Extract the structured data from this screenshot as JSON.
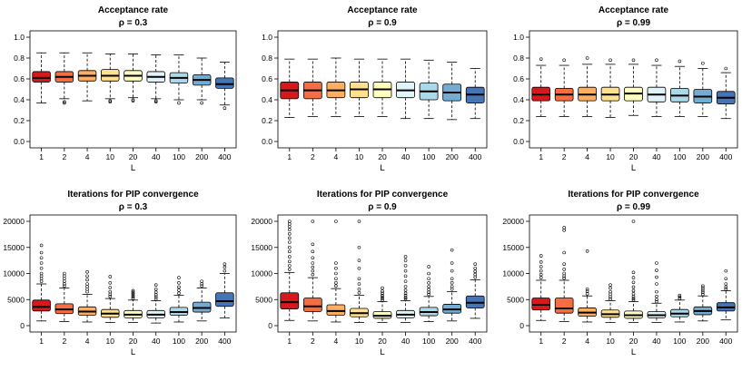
{
  "chart_data": [
    {
      "type": "boxplot",
      "title": "Acceptance rate",
      "subtitle": "ρ = 0.3",
      "xlabel": "L",
      "categories": [
        "1",
        "2",
        "4",
        "10",
        "20",
        "40",
        "100",
        "200",
        "400"
      ],
      "ylim": [
        0,
        1
      ],
      "yticks": [
        "0.0",
        "0.2",
        "0.4",
        "0.6",
        "0.8",
        "1.0"
      ],
      "colors": [
        "#d7191c",
        "#f46d43",
        "#fdae61",
        "#fee090",
        "#ffffbf",
        "#e0f3f8",
        "#abd9e9",
        "#74add1",
        "#4575b4"
      ],
      "boxes": [
        {
          "whisker_low": 0.37,
          "q1": 0.57,
          "median": 0.61,
          "q3": 0.67,
          "whisker_high": 0.85,
          "outliers": []
        },
        {
          "whisker_low": 0.41,
          "q1": 0.57,
          "median": 0.62,
          "q3": 0.67,
          "whisker_high": 0.85,
          "outliers": [
            0.37,
            0.38
          ]
        },
        {
          "whisker_low": 0.39,
          "q1": 0.58,
          "median": 0.63,
          "q3": 0.68,
          "whisker_high": 0.85,
          "outliers": []
        },
        {
          "whisker_low": 0.41,
          "q1": 0.58,
          "median": 0.63,
          "q3": 0.69,
          "whisker_high": 0.84,
          "outliers": [
            0.38,
            0.39
          ]
        },
        {
          "whisker_low": 0.42,
          "q1": 0.58,
          "median": 0.63,
          "q3": 0.68,
          "whisker_high": 0.84,
          "outliers": [
            0.39,
            0.4
          ]
        },
        {
          "whisker_low": 0.41,
          "q1": 0.57,
          "median": 0.62,
          "q3": 0.67,
          "whisker_high": 0.83,
          "outliers": [
            0.38,
            0.39
          ]
        },
        {
          "whisker_low": 0.4,
          "q1": 0.56,
          "median": 0.61,
          "q3": 0.66,
          "whisker_high": 0.83,
          "outliers": [
            0.37
          ]
        },
        {
          "whisker_low": 0.4,
          "q1": 0.54,
          "median": 0.59,
          "q3": 0.64,
          "whisker_high": 0.8,
          "outliers": [
            0.37
          ]
        },
        {
          "whisker_low": 0.35,
          "q1": 0.51,
          "median": 0.55,
          "q3": 0.61,
          "whisker_high": 0.76,
          "outliers": [
            0.32
          ]
        }
      ]
    },
    {
      "type": "boxplot",
      "title": "Acceptance rate",
      "subtitle": "ρ = 0.9",
      "xlabel": "L",
      "categories": [
        "1",
        "2",
        "4",
        "10",
        "20",
        "40",
        "100",
        "200",
        "400"
      ],
      "ylim": [
        0,
        1
      ],
      "yticks": [
        "0.0",
        "0.2",
        "0.4",
        "0.6",
        "0.8",
        "1.0"
      ],
      "colors": [
        "#d7191c",
        "#f46d43",
        "#fdae61",
        "#fee090",
        "#ffffbf",
        "#e0f3f8",
        "#abd9e9",
        "#74add1",
        "#4575b4"
      ],
      "boxes": [
        {
          "whisker_low": 0.23,
          "q1": 0.41,
          "median": 0.49,
          "q3": 0.57,
          "whisker_high": 0.79,
          "outliers": []
        },
        {
          "whisker_low": 0.24,
          "q1": 0.41,
          "median": 0.49,
          "q3": 0.57,
          "whisker_high": 0.79,
          "outliers": []
        },
        {
          "whisker_low": 0.24,
          "q1": 0.42,
          "median": 0.49,
          "q3": 0.57,
          "whisker_high": 0.8,
          "outliers": []
        },
        {
          "whisker_low": 0.24,
          "q1": 0.42,
          "median": 0.5,
          "q3": 0.57,
          "whisker_high": 0.79,
          "outliers": []
        },
        {
          "whisker_low": 0.24,
          "q1": 0.42,
          "median": 0.5,
          "q3": 0.57,
          "whisker_high": 0.79,
          "outliers": []
        },
        {
          "whisker_low": 0.22,
          "q1": 0.42,
          "median": 0.49,
          "q3": 0.57,
          "whisker_high": 0.79,
          "outliers": []
        },
        {
          "whisker_low": 0.22,
          "q1": 0.4,
          "median": 0.48,
          "q3": 0.56,
          "whisker_high": 0.78,
          "outliers": []
        },
        {
          "whisker_low": 0.21,
          "q1": 0.39,
          "median": 0.47,
          "q3": 0.55,
          "whisker_high": 0.76,
          "outliers": []
        },
        {
          "whisker_low": 0.22,
          "q1": 0.37,
          "median": 0.45,
          "q3": 0.52,
          "whisker_high": 0.7,
          "outliers": []
        }
      ]
    },
    {
      "type": "boxplot",
      "title": "Acceptance rate",
      "subtitle": "ρ = 0.99",
      "xlabel": "L",
      "categories": [
        "1",
        "2",
        "4",
        "10",
        "20",
        "40",
        "100",
        "200",
        "400"
      ],
      "ylim": [
        0,
        1
      ],
      "yticks": [
        "0.0",
        "0.2",
        "0.4",
        "0.6",
        "0.8",
        "1.0"
      ],
      "colors": [
        "#d7191c",
        "#f46d43",
        "#fdae61",
        "#fee090",
        "#ffffbf",
        "#e0f3f8",
        "#abd9e9",
        "#74add1",
        "#4575b4"
      ],
      "boxes": [
        {
          "whisker_low": 0.24,
          "q1": 0.39,
          "median": 0.45,
          "q3": 0.52,
          "whisker_high": 0.73,
          "outliers": [
            0.79
          ]
        },
        {
          "whisker_low": 0.24,
          "q1": 0.39,
          "median": 0.45,
          "q3": 0.51,
          "whisker_high": 0.73,
          "outliers": [
            0.78
          ]
        },
        {
          "whisker_low": 0.24,
          "q1": 0.39,
          "median": 0.45,
          "q3": 0.52,
          "whisker_high": 0.74,
          "outliers": [
            0.8
          ]
        },
        {
          "whisker_low": 0.23,
          "q1": 0.39,
          "median": 0.45,
          "q3": 0.52,
          "whisker_high": 0.74,
          "outliers": [
            0.78
          ]
        },
        {
          "whisker_low": 0.25,
          "q1": 0.39,
          "median": 0.46,
          "q3": 0.52,
          "whisker_high": 0.74,
          "outliers": [
            0.78
          ]
        },
        {
          "whisker_low": 0.24,
          "q1": 0.38,
          "median": 0.45,
          "q3": 0.52,
          "whisker_high": 0.73,
          "outliers": [
            0.78
          ]
        },
        {
          "whisker_low": 0.24,
          "q1": 0.38,
          "median": 0.44,
          "q3": 0.51,
          "whisker_high": 0.72,
          "outliers": [
            0.77
          ]
        },
        {
          "whisker_low": 0.24,
          "q1": 0.37,
          "median": 0.43,
          "q3": 0.5,
          "whisker_high": 0.7,
          "outliers": [
            0.75
          ]
        },
        {
          "whisker_low": 0.22,
          "q1": 0.36,
          "median": 0.42,
          "q3": 0.48,
          "whisker_high": 0.66,
          "outliers": [
            0.7
          ]
        }
      ]
    },
    {
      "type": "boxplot",
      "title": "Iterations for PIP convergence",
      "subtitle": "ρ = 0.3",
      "xlabel": "L",
      "categories": [
        "1",
        "2",
        "4",
        "10",
        "20",
        "40",
        "100",
        "200",
        "400"
      ],
      "ylim": [
        0,
        20000
      ],
      "yticks": [
        "0",
        "5000",
        "10000",
        "15000",
        "20000"
      ],
      "colors": [
        "#d7191c",
        "#f46d43",
        "#fdae61",
        "#fee090",
        "#ffffbf",
        "#e0f3f8",
        "#abd9e9",
        "#74add1",
        "#4575b4"
      ],
      "boxes": [
        {
          "whisker_low": 900,
          "q1": 2800,
          "median": 3600,
          "q3": 4900,
          "whisker_high": 8000,
          "outliers": [
            8500,
            9000,
            9500,
            10000,
            11000,
            12000,
            13000,
            14000,
            15400
          ]
        },
        {
          "whisker_low": 800,
          "q1": 2300,
          "median": 3100,
          "q3": 4200,
          "whisker_high": 7200,
          "outliers": [
            7600,
            8000,
            8500,
            9000,
            9500,
            10000
          ]
        },
        {
          "whisker_low": 700,
          "q1": 2000,
          "median": 2700,
          "q3": 3600,
          "whisker_high": 6000,
          "outliers": [
            6500,
            7000,
            7500,
            8000,
            8800,
            9500,
            10300
          ]
        },
        {
          "whisker_low": 600,
          "q1": 1600,
          "median": 2300,
          "q3": 3100,
          "whisker_high": 5200,
          "outliers": [
            5600,
            6000,
            6500,
            7300,
            8200,
            9400
          ]
        },
        {
          "whisker_low": 600,
          "q1": 1500,
          "median": 2100,
          "q3": 2900,
          "whisker_high": 4900,
          "outliers": [
            5200,
            5500,
            5800,
            6100,
            6400,
            6700
          ]
        },
        {
          "whisker_low": 500,
          "q1": 1500,
          "median": 2100,
          "q3": 2900,
          "whisker_high": 4800,
          "outliers": [
            5100,
            5500,
            5900,
            6400,
            7000,
            7800
          ]
        },
        {
          "whisker_low": 700,
          "q1": 2000,
          "median": 2600,
          "q3": 3500,
          "whisker_high": 5800,
          "outliers": [
            6200,
            6800,
            7400,
            8200,
            9200
          ]
        },
        {
          "whisker_low": 900,
          "q1": 2600,
          "median": 3400,
          "q3": 4500,
          "whisker_high": 7200,
          "outliers": [
            7600,
            8000,
            8500
          ]
        },
        {
          "whisker_low": 1500,
          "q1": 3700,
          "median": 4700,
          "q3": 6300,
          "whisker_high": 10000,
          "outliers": [
            10500,
            11200,
            11800
          ]
        }
      ]
    },
    {
      "type": "boxplot",
      "title": "Iterations for PIP convergence",
      "subtitle": "ρ = 0.9",
      "xlabel": "L",
      "categories": [
        "1",
        "2",
        "4",
        "10",
        "20",
        "40",
        "100",
        "200",
        "400"
      ],
      "ylim": [
        0,
        20000
      ],
      "yticks": [
        "0",
        "5000",
        "10000",
        "15000",
        "20000"
      ],
      "colors": [
        "#d7191c",
        "#f46d43",
        "#fdae61",
        "#fee090",
        "#ffffbf",
        "#e0f3f8",
        "#abd9e9",
        "#74add1",
        "#4575b4"
      ],
      "boxes": [
        {
          "whisker_low": 1000,
          "q1": 3200,
          "median": 4500,
          "q3": 6300,
          "whisker_high": 10200,
          "outliers": [
            10800,
            11500,
            12300,
            13200,
            14200,
            15000,
            16000,
            16800,
            17600,
            18400,
            19000,
            19500,
            20000
          ]
        },
        {
          "whisker_low": 900,
          "q1": 2700,
          "median": 3700,
          "q3": 5300,
          "whisker_high": 9200,
          "outliers": [
            9800,
            10500,
            11200,
            12000,
            13000,
            14200,
            15600,
            20000
          ]
        },
        {
          "whisker_low": 700,
          "q1": 2000,
          "median": 2800,
          "q3": 4000,
          "whisker_high": 7100,
          "outliers": [
            7600,
            8200,
            9000,
            10000,
            11000,
            12000,
            20000
          ]
        },
        {
          "whisker_low": 600,
          "q1": 1700,
          "median": 2400,
          "q3": 3300,
          "whisker_high": 5800,
          "outliers": [
            6300,
            7000,
            8000,
            9000,
            11000,
            12500,
            15000,
            20000
          ]
        },
        {
          "whisker_low": 600,
          "q1": 1400,
          "median": 1900,
          "q3": 2700,
          "whisker_high": 4600,
          "outliers": [
            4900,
            5200,
            5500,
            5800,
            6200,
            6600,
            7200
          ]
        },
        {
          "whisker_low": 600,
          "q1": 1500,
          "median": 2100,
          "q3": 2900,
          "whisker_high": 4800,
          "outliers": [
            5100,
            5400,
            5800,
            6200,
            6800,
            7500,
            8500,
            9500,
            10500,
            11500,
            12500,
            13200
          ]
        },
        {
          "whisker_low": 800,
          "q1": 1900,
          "median": 2600,
          "q3": 3500,
          "whisker_high": 5600,
          "outliers": [
            6000,
            6400,
            6900,
            7500,
            8200,
            9000,
            10000,
            11300
          ]
        },
        {
          "whisker_low": 900,
          "q1": 2400,
          "median": 3100,
          "q3": 4100,
          "whisker_high": 6500,
          "outliers": [
            7000,
            7500,
            8200,
            9000,
            10500,
            12000,
            14500
          ]
        },
        {
          "whisker_low": 1400,
          "q1": 3400,
          "median": 4400,
          "q3": 5700,
          "whisker_high": 8800,
          "outliers": [
            9300,
            9800,
            10400,
            11000,
            11800
          ]
        }
      ]
    },
    {
      "type": "boxplot",
      "title": "Iterations for PIP convergence",
      "subtitle": "ρ = 0.99",
      "xlabel": "L",
      "categories": [
        "1",
        "2",
        "4",
        "10",
        "20",
        "40",
        "100",
        "200",
        "400"
      ],
      "ylim": [
        0,
        20000
      ],
      "yticks": [
        "0",
        "5000",
        "10000",
        "15000",
        "20000"
      ],
      "colors": [
        "#d7191c",
        "#f46d43",
        "#fdae61",
        "#fee090",
        "#ffffbf",
        "#e0f3f8",
        "#abd9e9",
        "#74add1",
        "#4575b4"
      ],
      "boxes": [
        {
          "whisker_low": 1000,
          "q1": 3000,
          "median": 4000,
          "q3": 5300,
          "whisker_high": 8700,
          "outliers": [
            9200,
            9800,
            10500,
            11300,
            12200,
            13400
          ]
        },
        {
          "whisker_low": 800,
          "q1": 2400,
          "median": 3300,
          "q3": 5300,
          "whisker_high": 8700,
          "outliers": [
            9100,
            9500,
            10000,
            10800,
            11800,
            14000,
            18300,
            18800
          ]
        },
        {
          "whisker_low": 700,
          "q1": 1800,
          "median": 2500,
          "q3": 3400,
          "whisker_high": 5700,
          "outliers": [
            6100,
            6600,
            7000,
            14300
          ]
        },
        {
          "whisker_low": 600,
          "q1": 1600,
          "median": 2200,
          "q3": 3000,
          "whisker_high": 4800,
          "outliers": [
            5100,
            5500,
            6000,
            6500,
            7200,
            7800
          ]
        },
        {
          "whisker_low": 600,
          "q1": 1400,
          "median": 2000,
          "q3": 2800,
          "whisker_high": 4600,
          "outliers": [
            4900,
            5200,
            5600,
            6100,
            6700,
            7400,
            8300,
            9200,
            10200,
            20000
          ]
        },
        {
          "whisker_low": 600,
          "q1": 1500,
          "median": 2000,
          "q3": 2700,
          "whisker_high": 4300,
          "outliers": [
            4600,
            5000,
            5600,
            6500,
            8000,
            9300,
            10600,
            12000
          ]
        },
        {
          "whisker_low": 700,
          "q1": 1700,
          "median": 2300,
          "q3": 3100,
          "whisker_high": 4900,
          "outliers": [
            5200,
            5500,
            5800
          ]
        },
        {
          "whisker_low": 900,
          "q1": 2100,
          "median": 2800,
          "q3": 3600,
          "whisker_high": 5700,
          "outliers": [
            6000,
            6400,
            6800,
            7200,
            7600
          ]
        },
        {
          "whisker_low": 1100,
          "q1": 2800,
          "median": 3500,
          "q3": 4400,
          "whisker_high": 6700,
          "outliers": [
            7000,
            7400,
            8000,
            9000,
            10500
          ]
        }
      ]
    }
  ]
}
